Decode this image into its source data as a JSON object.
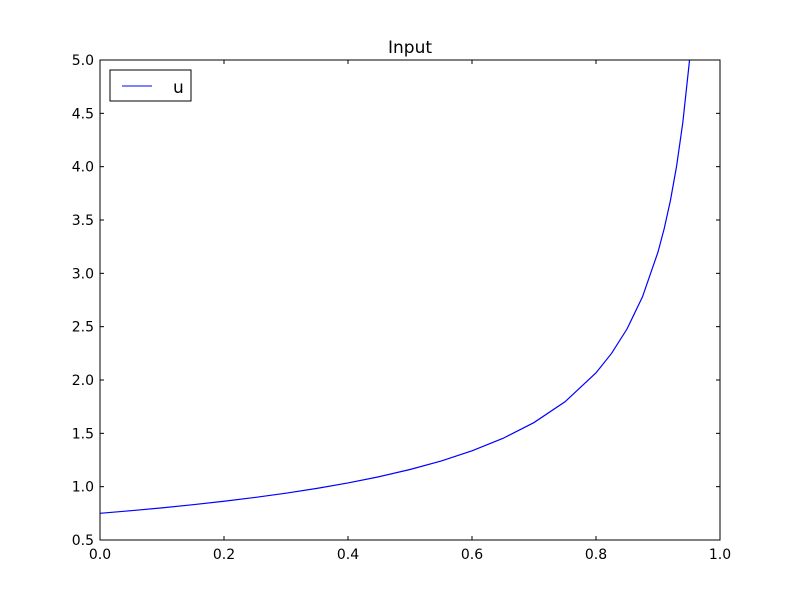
{
  "chart_data": {
    "type": "line",
    "title": "Input",
    "xlabel": "",
    "ylabel": "",
    "xlim": [
      0.0,
      1.0
    ],
    "ylim": [
      0.5,
      5.0
    ],
    "xticks": [
      "0.0",
      "0.2",
      "0.4",
      "0.6",
      "0.8",
      "1.0"
    ],
    "yticks": [
      "0.5",
      "1.0",
      "1.5",
      "2.0",
      "2.5",
      "3.0",
      "3.5",
      "4.0",
      "4.5",
      "5.0"
    ],
    "grid": false,
    "legend_placement": "top-left",
    "series": [
      {
        "name": "u",
        "color": "#0000ff",
        "x": [
          0,
          0.05,
          0.1,
          0.15,
          0.2,
          0.25,
          0.3,
          0.35,
          0.4,
          0.45,
          0.5,
          0.55,
          0.6,
          0.65,
          0.7,
          0.75,
          0.8,
          0.825,
          0.85,
          0.875,
          0.9,
          0.91,
          0.92,
          0.93,
          0.94,
          0.95,
          0.951
        ],
        "y": [
          0.75,
          0.775,
          0.801,
          0.831,
          0.863,
          0.899,
          0.939,
          0.984,
          1.035,
          1.093,
          1.161,
          1.24,
          1.336,
          1.453,
          1.601,
          1.796,
          2.067,
          2.249,
          2.478,
          2.78,
          3.2,
          3.419,
          3.682,
          4.005,
          4.413,
          4.951,
          5.01
        ]
      }
    ]
  }
}
